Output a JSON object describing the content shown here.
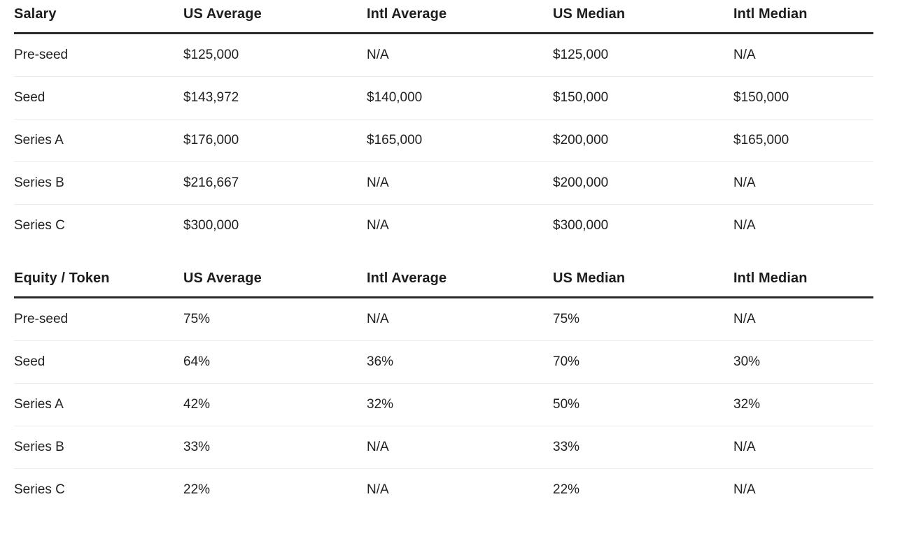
{
  "page": {
    "background": "#ffffff",
    "text_color": "#212121",
    "header_text_color": "#1d1d1f",
    "header_rule_color": "#2a2a2a",
    "divider_color": "#ebebeb"
  },
  "tables": [
    {
      "name": "salary",
      "columns": [
        "Salary",
        "US Average",
        "Intl Average",
        "US Median",
        "Intl Median"
      ],
      "rows": [
        {
          "label": "Pre-seed",
          "values": [
            "$125,000",
            "N/A",
            "$125,000",
            "N/A"
          ]
        },
        {
          "label": "Seed",
          "values": [
            "$143,972",
            "$140,000",
            "$150,000",
            "$150,000"
          ]
        },
        {
          "label": "Series A",
          "values": [
            "$176,000",
            "$165,000",
            "$200,000",
            "$165,000"
          ]
        },
        {
          "label": "Series B",
          "values": [
            "$216,667",
            "N/A",
            "$200,000",
            "N/A"
          ]
        },
        {
          "label": "Series C",
          "values": [
            "$300,000",
            "N/A",
            "$300,000",
            "N/A"
          ]
        }
      ]
    },
    {
      "name": "equity-token",
      "columns": [
        "Equity / Token",
        "US Average",
        "Intl Average",
        "US Median",
        "Intl Median"
      ],
      "rows": [
        {
          "label": "Pre-seed",
          "values": [
            "75%",
            "N/A",
            "75%",
            "N/A"
          ]
        },
        {
          "label": "Seed",
          "values": [
            "64%",
            "36%",
            "70%",
            "30%"
          ]
        },
        {
          "label": "Series A",
          "values": [
            "42%",
            "32%",
            "50%",
            "32%"
          ]
        },
        {
          "label": "Series B",
          "values": [
            "33%",
            "N/A",
            "33%",
            "N/A"
          ]
        },
        {
          "label": "Series C",
          "values": [
            "22%",
            "N/A",
            "22%",
            "N/A"
          ]
        }
      ]
    }
  ]
}
